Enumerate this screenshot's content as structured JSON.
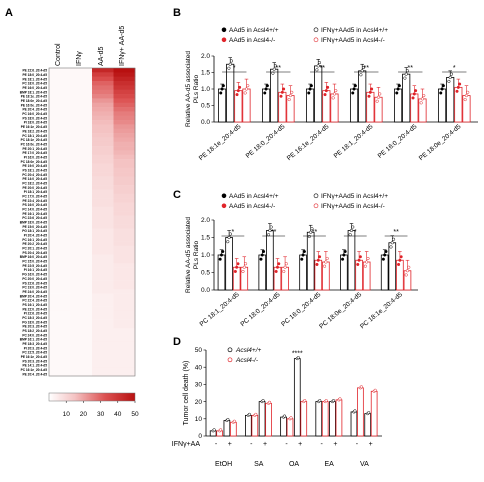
{
  "panel_labels": {
    "A": "A",
    "B": "B",
    "C": "C",
    "D": "D"
  },
  "heatmap": {
    "columns": [
      "Control",
      "IFNγ",
      "AA-d5",
      "IFNγ+ AA-d5"
    ],
    "rows": [
      "PE 22:6_20:4-d5",
      "PE 18:0_20:4-d5",
      "PE 18:1_20:4-d5",
      "PC 18:0_20:4-d5",
      "PE 16:0_20:4-d5",
      "BMP 18:1_20:4-d5",
      "PE 18:1e_20:4-d5",
      "PE 18:0e_20:4-d5",
      "PE 16:0e_20:4-d5",
      "PE 20:4_20:4-d5",
      "PC 16:0_20:4-d5",
      "PS 18:0_20:4-d5",
      "PI 18:0_20:4-d5",
      "PE 16:1e_20:4-d5",
      "PE 18:2_20:4-d5",
      "PC 18:1_20:4-d5",
      "PC 18:1e_20:4-d5",
      "PC 16:0e_20:4-d5",
      "PE 20:1_20:4-d5",
      "PE 17:0_20:4-d5",
      "PI 16:0_20:4-d5",
      "PC 18:0e_20:4-d5",
      "PE 19:0_20:4-d5",
      "PS 18:1_20:4-d5",
      "PC 20:4_20:4-d5",
      "PE 14:0_20:4-d5",
      "PC 18:2_20:4-d5",
      "PE 20:0_20:4-d5",
      "PI 18:1_20:4-d5",
      "PC 17:0_20:4-d5",
      "PE 22:4_20:4-d5",
      "PS 16:0_20:4-d5",
      "PC 14:0_20:4-d5",
      "PE 16:1_20:4-d5",
      "PC 22:6_20:4-d5",
      "BMP 18:0_20:4-d5",
      "PE 15:0_20:4-d5",
      "PG 18:1_20:4-d5",
      "PI 20:4_20:4-d5",
      "PC 16:1_20:4-d5",
      "PE 20:2_20:4-d5",
      "PC 20:1_20:4-d5",
      "PS 20:4_20:4-d5",
      "BMP 16:0_20:4-d5",
      "PC 15:0_20:4-d5",
      "PE 22:5_20:4-d5",
      "PI 16:1_20:4-d5",
      "PG 16:0_20:4-d5",
      "PC 20:0_20:4-d5",
      "PS 22:6_20:4-d5",
      "PC 19:0_20:4-d5",
      "PE 24:0_20:4-d5",
      "BMP 20:4_20:4-d5",
      "PC 22:4_20:4-d5",
      "PS 16:1_20:4-d5",
      "PE 22:0_20:4-d5",
      "PI 22:6_20:4-d5",
      "PC 18:3_20:4-d5",
      "PG 18:0_20:4-d5",
      "PE 20:3_20:4-d5",
      "PS 18:2_20:4-d5",
      "PC 24:0_20:4-d5",
      "BMP 16:1_20:4-d5",
      "PE 18:3_20:4-d5",
      "PI 20:3_20:4-d5",
      "PC 22:5_20:4-d5",
      "PE 16:1e_20:4-d5",
      "PS 20:3_20:4-d5",
      "PE 14:1_20:4-d5",
      "PC 16:1e_20:4-d5",
      "PE 20:4_20:4-d5"
    ],
    "colorbar_ticks": [
      "10",
      "20",
      "30",
      "40",
      "50"
    ],
    "colorbar_range": [
      0,
      50
    ],
    "cell_values": {
      "ctrl": 1.5,
      "ifng": 1.8,
      "aa": [
        44,
        38,
        34,
        30,
        28,
        27,
        25,
        22,
        20,
        19,
        18,
        17,
        16,
        15,
        15,
        14,
        13,
        13,
        12,
        12,
        11,
        11,
        10,
        10,
        10,
        9,
        9,
        9,
        8,
        8,
        8,
        8,
        7,
        7,
        7,
        7,
        7,
        6,
        6,
        6,
        6,
        6,
        6,
        5,
        5,
        5,
        5,
        5,
        5,
        5,
        5,
        5,
        4,
        4,
        4,
        4,
        4,
        4,
        4,
        4,
        4,
        4,
        4,
        4,
        4,
        4,
        4,
        4,
        4,
        4,
        4
      ],
      "ifng_aa": [
        50,
        48,
        45,
        42,
        40,
        37,
        35,
        32,
        30,
        28,
        26,
        25,
        24,
        22,
        21,
        20,
        19,
        18,
        18,
        17,
        16,
        15,
        15,
        14,
        14,
        13,
        13,
        12,
        12,
        11,
        11,
        10,
        10,
        10,
        9,
        9,
        9,
        8,
        8,
        8,
        8,
        7,
        7,
        7,
        7,
        6,
        6,
        6,
        6,
        6,
        6,
        5,
        5,
        5,
        5,
        5,
        5,
        5,
        5,
        5,
        4,
        4,
        4,
        4,
        4,
        4,
        4,
        4,
        4,
        4,
        4
      ]
    }
  },
  "panelB": {
    "ylabel_line1": "Relative AA-d5 associated",
    "ylabel_line2": "PLs Ratio",
    "legend": [
      "AAd5 in Acsl4+/+",
      "AAd5 in Acsl4-/-",
      "IFNγ+AAd5 in Acsl4+/+",
      "IFNγ+AAd5 in Acsl4-/-"
    ],
    "chart_data": {
      "type": "bar",
      "categories": [
        "PE 18:1e_20:4-d5",
        "PE 18:0_20:4-d5",
        "PE 16:1e_20:4-d5",
        "PE 18:1_20:4-d5",
        "PE 16:0_20:4-d5",
        "PE 18:0e_20:4-d5"
      ],
      "series": [
        {
          "name": "AAd5 in Acsl4+/+",
          "values": [
            1.0,
            1.0,
            1.0,
            1.0,
            1.0,
            1.0
          ]
        },
        {
          "name": "IFNγ+AAd5 in Acsl4+/+",
          "values": [
            1.75,
            1.6,
            1.7,
            1.55,
            1.45,
            1.35
          ]
        },
        {
          "name": "AAd5 in Acsl4-/-",
          "values": [
            0.95,
            0.9,
            0.95,
            0.9,
            0.85,
            1.05
          ]
        },
        {
          "name": "IFNγ+AAd5 in Acsl4-/-",
          "values": [
            1.0,
            0.8,
            0.85,
            0.75,
            0.7,
            0.8
          ]
        }
      ],
      "ylim": [
        0,
        2.0
      ],
      "yticks": [
        "0.0",
        "0.5",
        "1.0",
        "1.5",
        "2.0"
      ],
      "significance": [
        "*",
        "**",
        "**",
        "**",
        "**",
        "*"
      ]
    }
  },
  "panelC": {
    "ylabel_line1": "Relative AA-d5 associated",
    "ylabel_line2": "PLs Ratio",
    "legend": [
      "AAd5 in Acsl4+/+",
      "AAd5 in Acsl4-/-",
      "IFNγ+AAd5 in Acsl4+/+",
      "IFNγ+AAd5 in Acsl4-/-"
    ],
    "chart_data": {
      "type": "bar",
      "categories": [
        "PC 18:1_20:4-d5",
        "PC 18:0_20:4-d5",
        "PC 16:0_20:4-d5",
        "PC 18:0e_20:4-d5",
        "PC 18:1e_20:4-d5"
      ],
      "series": [
        {
          "name": "AAd5 in Acsl4+/+",
          "values": [
            1.0,
            1.0,
            1.0,
            1.0,
            1.0
          ]
        },
        {
          "name": "IFNγ+AAd5 in Acsl4+/+",
          "values": [
            1.5,
            1.7,
            1.65,
            1.7,
            1.35
          ]
        },
        {
          "name": "AAd5 in Acsl4-/-",
          "values": [
            0.65,
            0.65,
            0.85,
            0.85,
            0.85
          ]
        },
        {
          "name": "IFNγ+AAd5 in Acsl4-/-",
          "values": [
            0.65,
            0.65,
            0.8,
            0.8,
            0.55
          ]
        }
      ],
      "ylim": [
        0,
        2.0
      ],
      "yticks": [
        "0.0",
        "0.5",
        "1.0",
        "1.5",
        "2.0"
      ],
      "significance": [
        "*",
        "**",
        "**",
        "*",
        "**"
      ]
    }
  },
  "panelD": {
    "ylabel": "Tumor cell death (%)",
    "legend": [
      "Acsl4+/+",
      "Acsl4-/-"
    ],
    "row_label": "IFNγ+AA",
    "signs": [
      "-",
      "+"
    ],
    "chart_data": {
      "type": "bar",
      "categories": [
        "EtOH",
        "SA",
        "OA",
        "EA",
        "VA"
      ],
      "series": [
        {
          "name": "Acsl4+/+",
          "values": [
            [
              3,
              9
            ],
            [
              12,
              20
            ],
            [
              11,
              45
            ],
            [
              20,
              20
            ],
            [
              14,
              13
            ]
          ]
        },
        {
          "name": "Acsl4-/-",
          "values": [
            [
              3,
              8
            ],
            [
              12,
              19
            ],
            [
              10,
              20
            ],
            [
              20,
              21
            ],
            [
              28,
              26
            ]
          ]
        }
      ],
      "ylim": [
        0,
        50
      ],
      "yticks": [
        "0",
        "10",
        "20",
        "30",
        "40",
        "50"
      ],
      "significance": [
        "****"
      ]
    }
  }
}
